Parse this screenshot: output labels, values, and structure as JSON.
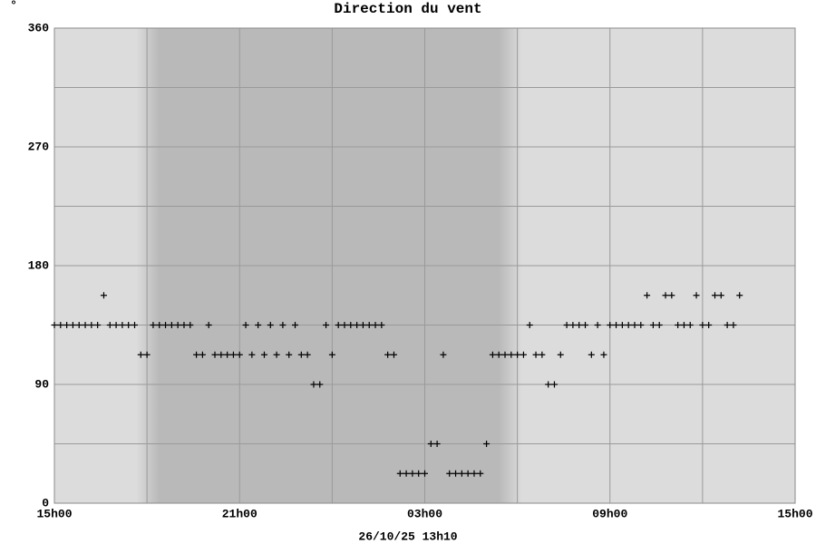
{
  "chart_data": {
    "type": "scatter",
    "title": "Direction du vent",
    "y_label": "°",
    "footer": "26/10/25 13h10",
    "marker": "+",
    "color": "#000000",
    "background": "#dcdcdc",
    "night_color": "#b9b9b9",
    "night": [
      3.4,
      14.4
    ],
    "grid": true,
    "xlim": [
      0,
      24
    ],
    "xticks": [
      {
        "value": 0,
        "label": "15h00"
      },
      {
        "value": 6,
        "label": "21h00"
      },
      {
        "value": 12,
        "label": "03h00"
      },
      {
        "value": 18,
        "label": "09h00"
      },
      {
        "value": 24,
        "label": "15h00"
      }
    ],
    "x_minor_ticks": [
      3,
      9,
      15,
      21
    ],
    "ylim": [
      0,
      360
    ],
    "yticks": [
      0,
      90,
      180,
      270,
      360
    ],
    "y_minor_ticks": [
      45,
      135,
      225,
      315
    ],
    "x": [
      0,
      0.2,
      0.4,
      0.6,
      0.8,
      1.0,
      1.2,
      1.4,
      1.6,
      1.8,
      2.0,
      2.2,
      2.4,
      2.6,
      2.8,
      3.0,
      3.2,
      3.4,
      3.6,
      3.8,
      4.0,
      4.2,
      4.4,
      4.6,
      4.8,
      5.0,
      5.2,
      5.4,
      5.6,
      5.8,
      6.0,
      6.2,
      6.4,
      6.6,
      6.8,
      7.0,
      7.2,
      7.4,
      7.6,
      7.8,
      8.0,
      8.2,
      8.4,
      8.6,
      8.8,
      9.0,
      9.2,
      9.4,
      9.6,
      9.8,
      10.0,
      10.2,
      10.4,
      10.6,
      10.8,
      11.0,
      11.2,
      11.4,
      11.6,
      11.8,
      12.0,
      12.2,
      12.4,
      12.6,
      12.8,
      13.0,
      13.2,
      13.4,
      13.6,
      13.8,
      14.0,
      14.2,
      14.4,
      14.6,
      14.8,
      15.0,
      15.2,
      15.4,
      15.6,
      15.8,
      16.0,
      16.2,
      16.4,
      16.6,
      16.8,
      17.0,
      17.2,
      17.4,
      17.6,
      17.8,
      18.0,
      18.2,
      18.4,
      18.6,
      18.8,
      19.0,
      19.2,
      19.4,
      19.6,
      19.8,
      20.0,
      20.2,
      20.4,
      20.6,
      20.8,
      21.0,
      21.2,
      21.4,
      21.6,
      21.8,
      22.0,
      22.2
    ],
    "values": [
      135,
      135,
      135,
      135,
      135,
      135,
      135,
      135,
      157.5,
      135,
      135,
      135,
      135,
      135,
      112.5,
      112.5,
      135,
      135,
      135,
      135,
      135,
      135,
      135,
      112.5,
      112.5,
      135,
      112.5,
      112.5,
      112.5,
      112.5,
      112.5,
      135,
      112.5,
      135,
      112.5,
      135,
      112.5,
      135,
      112.5,
      135,
      112.5,
      112.5,
      90,
      90,
      135,
      112.5,
      135,
      135,
      135,
      135,
      135,
      135,
      135,
      135,
      112.5,
      112.5,
      22.5,
      22.5,
      22.5,
      22.5,
      22.5,
      45,
      45,
      112.5,
      22.5,
      22.5,
      22.5,
      22.5,
      22.5,
      22.5,
      45,
      112.5,
      112.5,
      112.5,
      112.5,
      112.5,
      112.5,
      135,
      112.5,
      112.5,
      90,
      90,
      112.5,
      135,
      135,
      135,
      135,
      112.5,
      135,
      112.5,
      135,
      135,
      135,
      135,
      135,
      135,
      157.5,
      135,
      135,
      157.5,
      157.5,
      135,
      135,
      135,
      157.5,
      135,
      135,
      157.5,
      157.5,
      135,
      135,
      157.5
    ]
  }
}
